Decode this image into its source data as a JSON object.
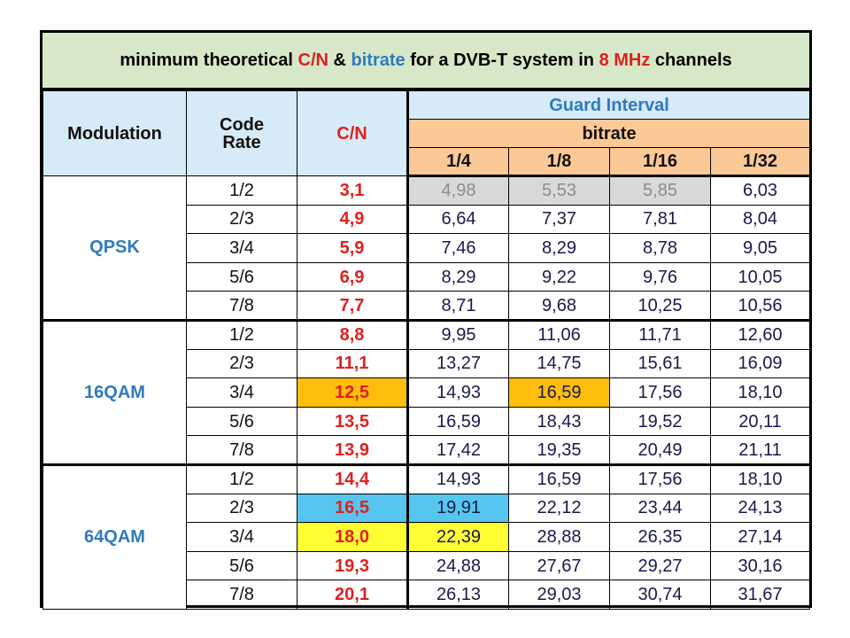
{
  "title": {
    "p1": "minimum theoretical ",
    "p2": "C/N",
    "p3": " & ",
    "p4": "bitrate",
    "p5": " for a DVB-T system in ",
    "p6": "8 MHz",
    "p7": " channels"
  },
  "headers": {
    "modulation": "Modulation",
    "code_rate_1": "Code",
    "code_rate_2": "Rate",
    "cn": "C/N",
    "guard_interval": "Guard Interval",
    "bitrate": "bitrate",
    "gi": [
      "1/4",
      "1/8",
      "1/16",
      "1/32"
    ]
  },
  "groups": [
    {
      "modulation": "QPSK",
      "rows": [
        {
          "code_rate": "1/2",
          "cn": "3,1",
          "bitrates": [
            "4,98",
            "5,53",
            "5,85",
            "6,03"
          ]
        },
        {
          "code_rate": "2/3",
          "cn": "4,9",
          "bitrates": [
            "6,64",
            "7,37",
            "7,81",
            "8,04"
          ]
        },
        {
          "code_rate": "3/4",
          "cn": "5,9",
          "bitrates": [
            "7,46",
            "8,29",
            "8,78",
            "9,05"
          ]
        },
        {
          "code_rate": "5/6",
          "cn": "6,9",
          "bitrates": [
            "8,29",
            "9,22",
            "9,76",
            "10,05"
          ]
        },
        {
          "code_rate": "7/8",
          "cn": "7,7",
          "bitrates": [
            "8,71",
            "9,68",
            "10,25",
            "10,56"
          ]
        }
      ]
    },
    {
      "modulation": "16QAM",
      "rows": [
        {
          "code_rate": "1/2",
          "cn": "8,8",
          "bitrates": [
            "9,95",
            "11,06",
            "11,71",
            "12,60"
          ]
        },
        {
          "code_rate": "2/3",
          "cn": "11,1",
          "bitrates": [
            "13,27",
            "14,75",
            "15,61",
            "16,09"
          ]
        },
        {
          "code_rate": "3/4",
          "cn": "12,5",
          "bitrates": [
            "14,93",
            "16,59",
            "17,56",
            "18,10"
          ]
        },
        {
          "code_rate": "5/6",
          "cn": "13,5",
          "bitrates": [
            "16,59",
            "18,43",
            "19,52",
            "20,11"
          ]
        },
        {
          "code_rate": "7/8",
          "cn": "13,9",
          "bitrates": [
            "17,42",
            "19,35",
            "20,49",
            "21,11"
          ]
        }
      ]
    },
    {
      "modulation": "64QAM",
      "rows": [
        {
          "code_rate": "1/2",
          "cn": "14,4",
          "bitrates": [
            "14,93",
            "16,59",
            "17,56",
            "18,10"
          ]
        },
        {
          "code_rate": "2/3",
          "cn": "16,5",
          "bitrates": [
            "19,91",
            "22,12",
            "23,44",
            "24,13"
          ]
        },
        {
          "code_rate": "3/4",
          "cn": "18,0",
          "bitrates": [
            "22,39",
            "28,88",
            "26,35",
            "27,14"
          ]
        },
        {
          "code_rate": "5/6",
          "cn": "19,3",
          "bitrates": [
            "24,88",
            "27,67",
            "29,27",
            "30,16"
          ]
        },
        {
          "code_rate": "7/8",
          "cn": "20,1",
          "bitrates": [
            "26,13",
            "29,03",
            "30,74",
            "31,67"
          ]
        }
      ]
    }
  ],
  "highlights": {
    "gray": "#d9d9d9",
    "orange": "#ffbe0c",
    "blue": "#56c6f0",
    "yellow": "#ffff33"
  }
}
